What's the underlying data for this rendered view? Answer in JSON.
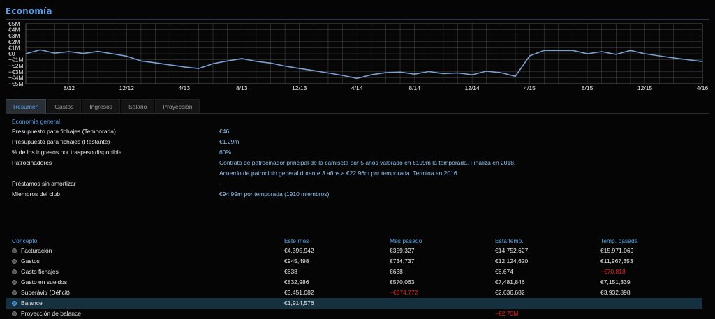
{
  "page": {
    "title": "Economía"
  },
  "chart_data": {
    "type": "line",
    "ylim": [
      -5,
      5
    ],
    "y_ticks": [
      5,
      4,
      3,
      2,
      1,
      0,
      -1,
      -2,
      -3,
      -4,
      -5
    ],
    "y_tick_labels": [
      "€5M",
      "€4M",
      "€3M",
      "€2M",
      "€1M",
      "€0",
      "−€1M",
      "−€2M",
      "−€3M",
      "−€4M",
      "−€5M"
    ],
    "x_tick_labels": [
      "8/12",
      "12/12",
      "4/13",
      "8/13",
      "12/13",
      "4/14",
      "8/14",
      "12/14",
      "4/15",
      "8/15",
      "12/15",
      "4/16"
    ],
    "x_tick_months": [
      3,
      7,
      11,
      15,
      19,
      23,
      27,
      31,
      35,
      39,
      43,
      47
    ],
    "x_range_months": [
      0,
      47
    ],
    "grid": true,
    "line_color": "#7b9fd0",
    "series": [
      {
        "x_months": [
          0,
          1,
          2,
          3,
          4,
          5,
          6,
          7,
          8,
          9,
          10,
          11,
          12,
          13,
          14,
          15,
          16,
          17,
          18,
          19,
          20,
          21,
          22,
          23,
          24,
          25,
          26,
          27,
          28,
          29,
          30,
          31,
          32,
          33,
          34,
          35,
          36,
          37,
          38,
          39,
          40,
          41,
          42,
          43,
          44,
          45,
          46,
          47
        ],
        "values": [
          0.0,
          0.65,
          0.1,
          0.35,
          0.05,
          0.4,
          0.0,
          -0.4,
          -1.2,
          -1.5,
          -1.85,
          -2.2,
          -2.45,
          -1.65,
          -1.2,
          -0.8,
          -1.25,
          -1.55,
          -2.05,
          -2.45,
          -2.8,
          -3.2,
          -3.6,
          -4.1,
          -3.5,
          -3.15,
          -3.05,
          -3.4,
          -2.95,
          -3.3,
          -3.2,
          -3.5,
          -2.9,
          -3.15,
          -3.75,
          -0.35,
          0.55,
          0.55,
          0.55,
          0.0,
          0.35,
          -0.1,
          0.55,
          0.0,
          -0.35,
          -0.7,
          -1.0,
          -1.3
        ]
      }
    ]
  },
  "tabs": [
    {
      "label": "Resumen",
      "active": true
    },
    {
      "label": "Gastos",
      "active": false
    },
    {
      "label": "Ingresos",
      "active": false
    },
    {
      "label": "Salario",
      "active": false
    },
    {
      "label": "Proyección",
      "active": false
    }
  ],
  "summary": {
    "section_title": "Economía general",
    "rows": [
      {
        "label": "Presupuesto para fichajes (Temporada)",
        "value": "€46"
      },
      {
        "label": "Presupuesto para fichajes (Restante)",
        "value": "€1.29m"
      },
      {
        "label": "% de los ingresos por traspaso disponible",
        "value": "60%"
      },
      {
        "label": "Patrocinadores",
        "value": "Contrato de patrocinador principal de la camiseta por 5 años valorado en €199m la temporada. Finaliza en 2018."
      },
      {
        "label": "",
        "value": "Acuerdo de patrocinio general durante 3 años a €22.96m por temporada. Termina en 2016"
      },
      {
        "label": "Préstamos sin amortizar",
        "value": "-"
      },
      {
        "label": "Miembros del club",
        "value": "€94.99m por temporada (1910 miembros)."
      }
    ]
  },
  "finance_table": {
    "headers": [
      "Concepto",
      "Este mes",
      "Mes pasado",
      "Esta temp.",
      "Temp. pasada"
    ],
    "rows": [
      {
        "label": "Facturación",
        "values": [
          "€4,395,942",
          "€359,327",
          "€14,752,627",
          "€15,971,069"
        ],
        "negative": [
          false,
          false,
          false,
          false
        ],
        "highlight": false
      },
      {
        "label": "Gastos",
        "values": [
          "€945,498",
          "€734,737",
          "€12,124,620",
          "€11,967,353"
        ],
        "negative": [
          false,
          false,
          false,
          false
        ],
        "highlight": false
      },
      {
        "label": "Gasto fichajes",
        "values": [
          "€638",
          "€638",
          "€8,674",
          "−€70,818"
        ],
        "negative": [
          false,
          false,
          false,
          true
        ],
        "highlight": false
      },
      {
        "label": "Gasto en sueldos",
        "values": [
          "€832,986",
          "€570,063",
          "€7,481,846",
          "€7,151,339"
        ],
        "negative": [
          false,
          false,
          false,
          false
        ],
        "highlight": false
      },
      {
        "label": "Superávit/ (Déficit)",
        "values": [
          "€3,451,082",
          "−€374,772",
          "€2,636,682",
          "€3,932,898"
        ],
        "negative": [
          false,
          true,
          false,
          false
        ],
        "highlight": false
      },
      {
        "label": "Balance",
        "values": [
          "€1,914,576",
          "",
          "",
          ""
        ],
        "negative": [
          false,
          false,
          false,
          false
        ],
        "highlight": true
      },
      {
        "label": "Proyección de balance",
        "values": [
          "",
          "",
          "−€2.73M",
          ""
        ],
        "negative": [
          false,
          false,
          true,
          false
        ],
        "highlight": false
      }
    ]
  }
}
